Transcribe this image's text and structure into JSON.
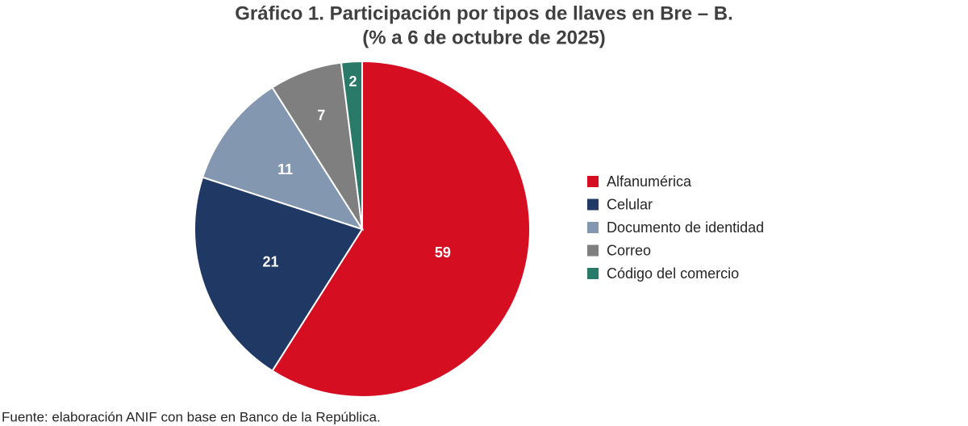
{
  "chart_data": {
    "type": "pie",
    "title": "Gráfico 1. Participación por tipos de llaves en Bre – B.",
    "subtitle": "(% a 6 de octubre de 2025)",
    "categories": [
      "Alfanumérica",
      "Celular",
      "Documento de identidad",
      "Correo",
      "Código del comercio"
    ],
    "values": [
      59,
      21,
      11,
      7,
      2
    ],
    "colors": [
      "#d50e22",
      "#1f3864",
      "#8497b0",
      "#7f7f7f",
      "#2a7a6a"
    ],
    "legend_position": "right",
    "source": "Fuente: elaboración ANIF con base en Banco de la República."
  }
}
